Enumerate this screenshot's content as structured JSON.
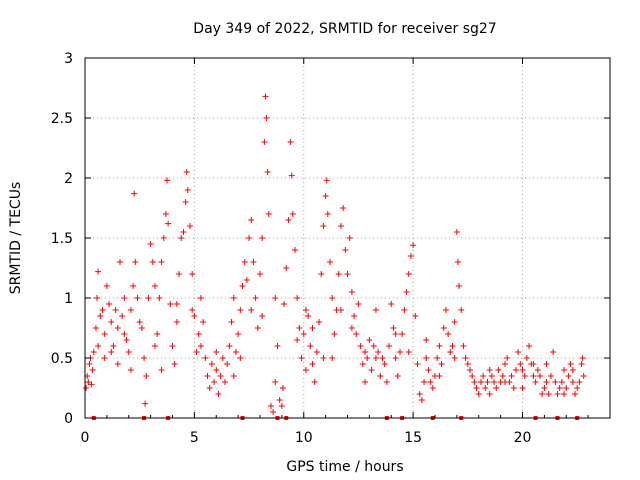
{
  "chart_data": {
    "type": "scatter",
    "title": "Day 349 of 2022, SRMTID for receiver sg27",
    "xlabel": "GPS time / hours",
    "ylabel": "SRMTID / TECUs",
    "xlim": [
      0,
      24
    ],
    "ylim": [
      0,
      3
    ],
    "xticks": [
      0,
      5,
      10,
      15,
      20
    ],
    "xtick_labels": [
      "0",
      "5",
      "10",
      "15",
      "20"
    ],
    "yticks": [
      0,
      0.5,
      1,
      1.5,
      2,
      2.5,
      3
    ],
    "ytick_labels": [
      "0",
      "0.5",
      "1",
      "1.5",
      "2",
      "2.5",
      "3"
    ],
    "grid": true,
    "marker": "plus",
    "color": "#ff0000",
    "bottom_markers_x": [
      0.4,
      2.7,
      3.8,
      7.2,
      8.8,
      9.2,
      13.8,
      14.5,
      15.9,
      17.2,
      20.6,
      21.6,
      22.5
    ],
    "series": [
      {
        "name": "SRMTID",
        "points": [
          [
            0.05,
            0.25
          ],
          [
            0.1,
            0.35
          ],
          [
            0.15,
            0.3
          ],
          [
            0.2,
            0.45
          ],
          [
            0.25,
            0.5
          ],
          [
            0.3,
            0.28
          ],
          [
            0.35,
            0.4
          ],
          [
            0.4,
            0.55
          ],
          [
            0.5,
            0.75
          ],
          [
            0.55,
            1.0
          ],
          [
            0.6,
            1.22
          ],
          [
            0.7,
            0.85
          ],
          [
            0.8,
            0.9
          ],
          [
            0.9,
            0.7
          ],
          [
            1.0,
            1.1
          ],
          [
            1.1,
            0.95
          ],
          [
            1.2,
            0.8
          ],
          [
            1.3,
            0.6
          ],
          [
            1.4,
            0.9
          ],
          [
            1.5,
            0.75
          ],
          [
            1.6,
            1.3
          ],
          [
            1.7,
            0.85
          ],
          [
            1.8,
            1.0
          ],
          [
            1.9,
            0.65
          ],
          [
            2.0,
            0.55
          ],
          [
            2.1,
            0.9
          ],
          [
            2.2,
            1.1
          ],
          [
            2.25,
            1.87
          ],
          [
            2.3,
            1.3
          ],
          [
            2.4,
            1.0
          ],
          [
            2.5,
            0.8
          ],
          [
            2.6,
            0.75
          ],
          [
            2.7,
            0.5
          ],
          [
            2.75,
            0.12
          ],
          [
            2.8,
            0.35
          ],
          [
            2.9,
            1.0
          ],
          [
            3.0,
            1.45
          ],
          [
            3.1,
            1.3
          ],
          [
            3.2,
            1.1
          ],
          [
            3.3,
            0.7
          ],
          [
            3.4,
            1.0
          ],
          [
            3.5,
            1.3
          ],
          [
            3.6,
            1.5
          ],
          [
            3.7,
            1.7
          ],
          [
            3.75,
            1.98
          ],
          [
            3.8,
            1.62
          ],
          [
            3.9,
            0.95
          ],
          [
            4.0,
            0.6
          ],
          [
            4.1,
            0.45
          ],
          [
            4.2,
            0.8
          ],
          [
            4.3,
            1.2
          ],
          [
            4.4,
            1.5
          ],
          [
            4.5,
            1.55
          ],
          [
            4.6,
            1.8
          ],
          [
            4.65,
            2.05
          ],
          [
            4.7,
            1.9
          ],
          [
            4.8,
            1.6
          ],
          [
            4.9,
            1.2
          ],
          [
            5.0,
            0.85
          ],
          [
            5.1,
            0.55
          ],
          [
            5.2,
            0.7
          ],
          [
            5.3,
            1.0
          ],
          [
            5.4,
            0.8
          ],
          [
            5.5,
            0.5
          ],
          [
            5.6,
            0.35
          ],
          [
            5.7,
            0.25
          ],
          [
            5.8,
            0.45
          ],
          [
            5.9,
            0.3
          ],
          [
            6.0,
            0.4
          ],
          [
            6.1,
            0.2
          ],
          [
            6.2,
            0.35
          ],
          [
            6.3,
            0.5
          ],
          [
            6.4,
            0.3
          ],
          [
            6.5,
            0.45
          ],
          [
            6.6,
            0.6
          ],
          [
            6.7,
            0.8
          ],
          [
            6.8,
            1.0
          ],
          [
            6.9,
            0.55
          ],
          [
            7.0,
            0.7
          ],
          [
            7.1,
            0.9
          ],
          [
            7.2,
            1.1
          ],
          [
            7.3,
            1.3
          ],
          [
            7.4,
            1.15
          ],
          [
            7.5,
            1.5
          ],
          [
            7.6,
            1.65
          ],
          [
            7.7,
            1.3
          ],
          [
            7.8,
            1.0
          ],
          [
            7.9,
            0.75
          ],
          [
            8.0,
            1.2
          ],
          [
            8.1,
            1.5
          ],
          [
            8.2,
            2.3
          ],
          [
            8.25,
            2.68
          ],
          [
            8.3,
            2.5
          ],
          [
            8.35,
            2.05
          ],
          [
            8.4,
            1.7
          ],
          [
            8.5,
            0.1
          ],
          [
            8.6,
            0.05
          ],
          [
            8.7,
            0.3
          ],
          [
            8.8,
            0.6
          ],
          [
            8.9,
            0.15
          ],
          [
            9.0,
            0.1
          ],
          [
            9.05,
            0.25
          ],
          [
            9.1,
            0.95
          ],
          [
            9.2,
            1.25
          ],
          [
            9.3,
            1.65
          ],
          [
            9.4,
            2.3
          ],
          [
            9.45,
            2.02
          ],
          [
            9.5,
            1.7
          ],
          [
            9.6,
            1.4
          ],
          [
            9.7,
            1.0
          ],
          [
            9.8,
            0.75
          ],
          [
            9.9,
            0.5
          ],
          [
            10.0,
            0.7
          ],
          [
            10.1,
            0.9
          ],
          [
            10.2,
            0.85
          ],
          [
            10.3,
            0.6
          ],
          [
            10.4,
            0.45
          ],
          [
            10.5,
            0.3
          ],
          [
            10.6,
            0.55
          ],
          [
            10.7,
            0.8
          ],
          [
            10.8,
            1.2
          ],
          [
            10.9,
            1.6
          ],
          [
            11.0,
            1.85
          ],
          [
            11.05,
            1.98
          ],
          [
            11.1,
            1.7
          ],
          [
            11.2,
            1.3
          ],
          [
            11.3,
            1.0
          ],
          [
            11.4,
            0.7
          ],
          [
            11.5,
            0.9
          ],
          [
            11.6,
            1.2
          ],
          [
            11.7,
            1.6
          ],
          [
            11.8,
            1.75
          ],
          [
            11.9,
            1.4
          ],
          [
            12.0,
            1.2
          ],
          [
            12.1,
            1.5
          ],
          [
            12.2,
            1.05
          ],
          [
            12.3,
            0.85
          ],
          [
            12.4,
            0.7
          ],
          [
            12.5,
            0.95
          ],
          [
            12.6,
            0.6
          ],
          [
            12.7,
            0.45
          ],
          [
            12.8,
            0.3
          ],
          [
            12.9,
            0.5
          ],
          [
            13.0,
            0.65
          ],
          [
            13.1,
            0.4
          ],
          [
            13.2,
            0.6
          ],
          [
            13.3,
            0.9
          ],
          [
            13.4,
            0.55
          ],
          [
            13.5,
            0.35
          ],
          [
            13.6,
            0.5
          ],
          [
            13.7,
            0.45
          ],
          [
            13.8,
            0.3
          ],
          [
            13.9,
            0.6
          ],
          [
            14.0,
            0.95
          ],
          [
            14.1,
            0.75
          ],
          [
            14.2,
            0.5
          ],
          [
            14.3,
            0.35
          ],
          [
            14.4,
            0.55
          ],
          [
            14.5,
            0.7
          ],
          [
            14.6,
            0.9
          ],
          [
            14.7,
            1.05
          ],
          [
            14.8,
            1.2
          ],
          [
            14.9,
            1.35
          ],
          [
            15.0,
            1.44
          ],
          [
            15.1,
            0.85
          ],
          [
            15.2,
            0.45
          ],
          [
            15.3,
            0.2
          ],
          [
            15.4,
            0.15
          ],
          [
            15.5,
            0.3
          ],
          [
            15.6,
            0.5
          ],
          [
            15.7,
            0.4
          ],
          [
            15.8,
            0.3
          ],
          [
            15.9,
            0.25
          ],
          [
            16.0,
            0.35
          ],
          [
            16.1,
            0.5
          ],
          [
            16.2,
            0.6
          ],
          [
            16.3,
            0.45
          ],
          [
            16.4,
            0.75
          ],
          [
            16.5,
            0.9
          ],
          [
            16.6,
            0.7
          ],
          [
            16.7,
            0.55
          ],
          [
            16.8,
            0.6
          ],
          [
            16.9,
            0.8
          ],
          [
            17.0,
            1.55
          ],
          [
            17.05,
            1.3
          ],
          [
            17.1,
            1.1
          ],
          [
            17.2,
            0.9
          ],
          [
            17.3,
            0.6
          ],
          [
            17.4,
            0.5
          ],
          [
            17.5,
            0.45
          ],
          [
            17.6,
            0.4
          ],
          [
            17.7,
            0.35
          ],
          [
            17.8,
            0.3
          ],
          [
            17.9,
            0.25
          ],
          [
            18.0,
            0.2
          ],
          [
            18.1,
            0.3
          ],
          [
            18.2,
            0.35
          ],
          [
            18.3,
            0.25
          ],
          [
            18.4,
            0.3
          ],
          [
            18.5,
            0.2
          ],
          [
            18.6,
            0.35
          ],
          [
            18.7,
            0.3
          ],
          [
            18.8,
            0.25
          ],
          [
            18.9,
            0.4
          ],
          [
            19.0,
            0.3
          ],
          [
            19.1,
            0.35
          ],
          [
            19.2,
            0.45
          ],
          [
            19.3,
            0.5
          ],
          [
            19.4,
            0.3
          ],
          [
            19.5,
            0.35
          ],
          [
            19.6,
            0.25
          ],
          [
            19.7,
            0.4
          ],
          [
            19.8,
            0.55
          ],
          [
            19.9,
            0.45
          ],
          [
            20.0,
            0.4
          ],
          [
            20.1,
            0.35
          ],
          [
            20.2,
            0.5
          ],
          [
            20.3,
            0.6
          ],
          [
            20.4,
            0.45
          ],
          [
            20.5,
            0.35
          ],
          [
            20.6,
            0.3
          ],
          [
            20.7,
            0.4
          ],
          [
            20.8,
            0.35
          ],
          [
            20.9,
            0.2
          ],
          [
            21.0,
            0.25
          ],
          [
            21.1,
            0.3
          ],
          [
            21.2,
            0.2
          ],
          [
            21.3,
            0.35
          ],
          [
            21.4,
            0.55
          ],
          [
            21.5,
            0.3
          ],
          [
            21.6,
            0.2
          ],
          [
            21.7,
            0.25
          ],
          [
            21.8,
            0.3
          ],
          [
            21.9,
            0.4
          ],
          [
            22.0,
            0.25
          ],
          [
            22.1,
            0.35
          ],
          [
            22.2,
            0.45
          ],
          [
            22.3,
            0.3
          ],
          [
            22.4,
            0.2
          ],
          [
            22.5,
            0.25
          ],
          [
            22.6,
            0.3
          ],
          [
            22.7,
            0.45
          ],
          [
            22.75,
            0.5
          ],
          [
            22.8,
            0.35
          ],
          [
            0.6,
            0.6
          ],
          [
            0.9,
            0.5
          ],
          [
            1.2,
            0.55
          ],
          [
            1.5,
            0.45
          ],
          [
            1.8,
            0.7
          ],
          [
            2.1,
            0.4
          ],
          [
            3.2,
            0.6
          ],
          [
            3.5,
            0.4
          ],
          [
            4.2,
            0.95
          ],
          [
            4.9,
            0.9
          ],
          [
            5.3,
            0.6
          ],
          [
            6.0,
            0.55
          ],
          [
            6.8,
            0.35
          ],
          [
            7.1,
            0.5
          ],
          [
            7.6,
            0.9
          ],
          [
            8.1,
            0.85
          ],
          [
            8.7,
            1.0
          ],
          [
            9.7,
            0.65
          ],
          [
            10.1,
            0.4
          ],
          [
            10.4,
            0.75
          ],
          [
            10.9,
            0.5
          ],
          [
            11.3,
            0.5
          ],
          [
            11.7,
            0.9
          ],
          [
            12.2,
            0.75
          ],
          [
            12.8,
            0.55
          ],
          [
            13.3,
            0.5
          ],
          [
            14.2,
            0.7
          ],
          [
            14.8,
            0.55
          ],
          [
            15.6,
            0.65
          ],
          [
            16.2,
            0.35
          ],
          [
            16.9,
            0.5
          ],
          [
            18.5,
            0.4
          ],
          [
            19.2,
            0.3
          ],
          [
            20.0,
            0.25
          ],
          [
            20.5,
            0.45
          ],
          [
            21.1,
            0.45
          ],
          [
            21.9,
            0.2
          ],
          [
            22.3,
            0.4
          ]
        ]
      }
    ]
  }
}
